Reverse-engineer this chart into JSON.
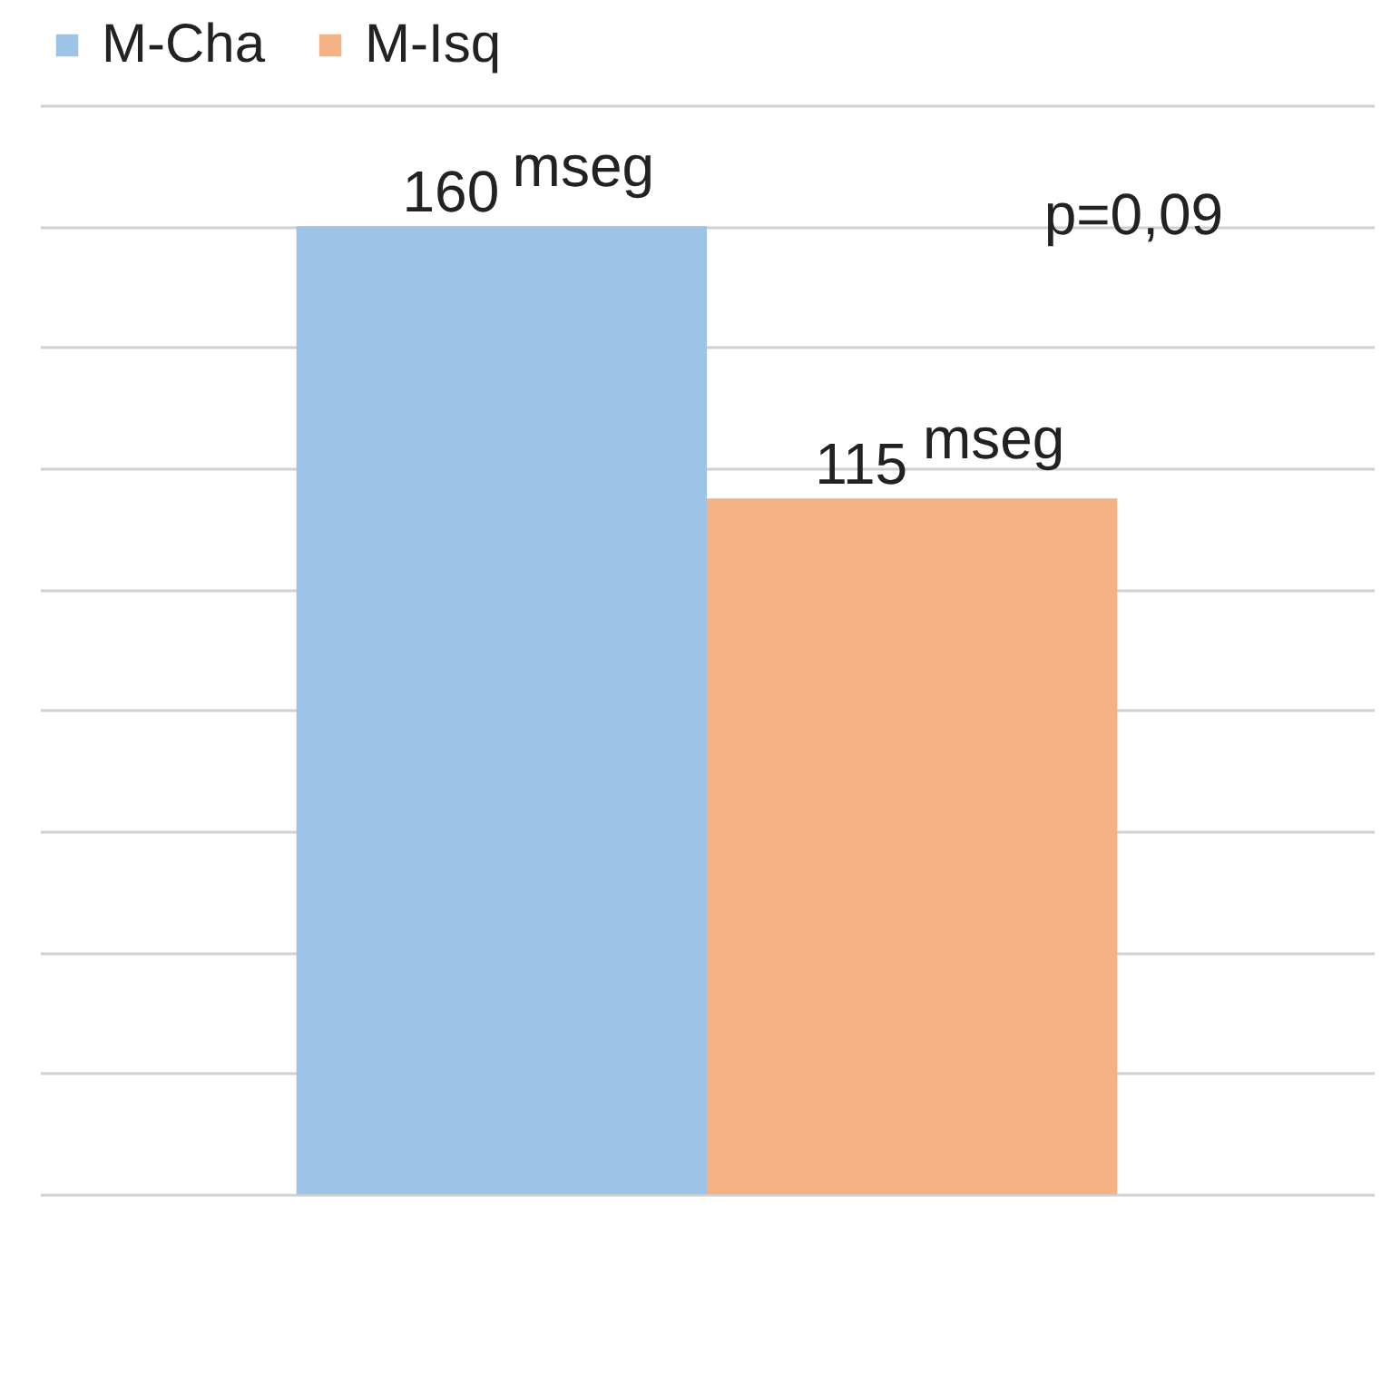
{
  "chart_data": {
    "type": "bar",
    "categories": [
      null
    ],
    "series": [
      {
        "name": "M-Cha",
        "color": "#9dc3e6",
        "values": [
          160
        ]
      },
      {
        "name": "M-Isq",
        "color": "#f4b183",
        "values": [
          115
        ]
      }
    ],
    "ylim": [
      0,
      180
    ],
    "yticks": [
      {
        "value": 0,
        "label": null
      },
      {
        "value": 20,
        "label": null
      },
      {
        "value": 40,
        "label": null
      },
      {
        "value": 60,
        "label": null
      },
      {
        "value": 80,
        "label": null
      },
      {
        "value": 100,
        "label": null
      },
      {
        "value": 120,
        "label": null
      },
      {
        "value": 140,
        "label": null
      },
      {
        "value": 160,
        "label": null
      },
      {
        "value": 180,
        "label": null
      }
    ],
    "grid": "y",
    "legend": "top",
    "data_labels": true,
    "annotations": [
      "mseg",
      "mseg",
      "p=0,09"
    ]
  }
}
